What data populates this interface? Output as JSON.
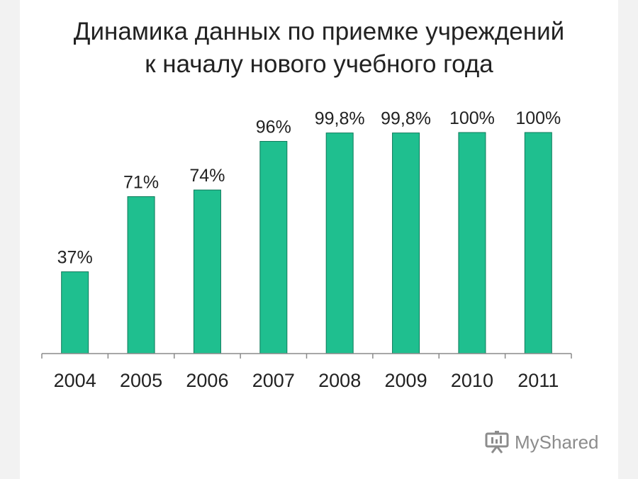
{
  "title": {
    "line1": "Динамика данных по приемке учреждений",
    "line2": "к началу нового учебного года"
  },
  "watermark": {
    "text": "MyShared",
    "icon": "presentation-board-icon"
  },
  "colors": {
    "bar": "#1fbf8f",
    "bar_stroke": "#0e7a5a",
    "axis": "#8a8a8a",
    "text": "#222222",
    "background": "#ffffff"
  },
  "chart_data": {
    "type": "bar",
    "title": "Динамика данных по приемке учреждений к началу нового учебного года",
    "categories": [
      "2004",
      "2005",
      "2006",
      "2007",
      "2008",
      "2009",
      "2010",
      "2011"
    ],
    "values": [
      37,
      71,
      74,
      96,
      99.8,
      99.8,
      100,
      100
    ],
    "value_labels": [
      "37%",
      "71%",
      "74%",
      "96%",
      "99,8%",
      "99,8%",
      "100%",
      "100%"
    ],
    "xlabel": "",
    "ylabel": "",
    "ylim": [
      0,
      100
    ],
    "grid": false,
    "legend": "none"
  }
}
